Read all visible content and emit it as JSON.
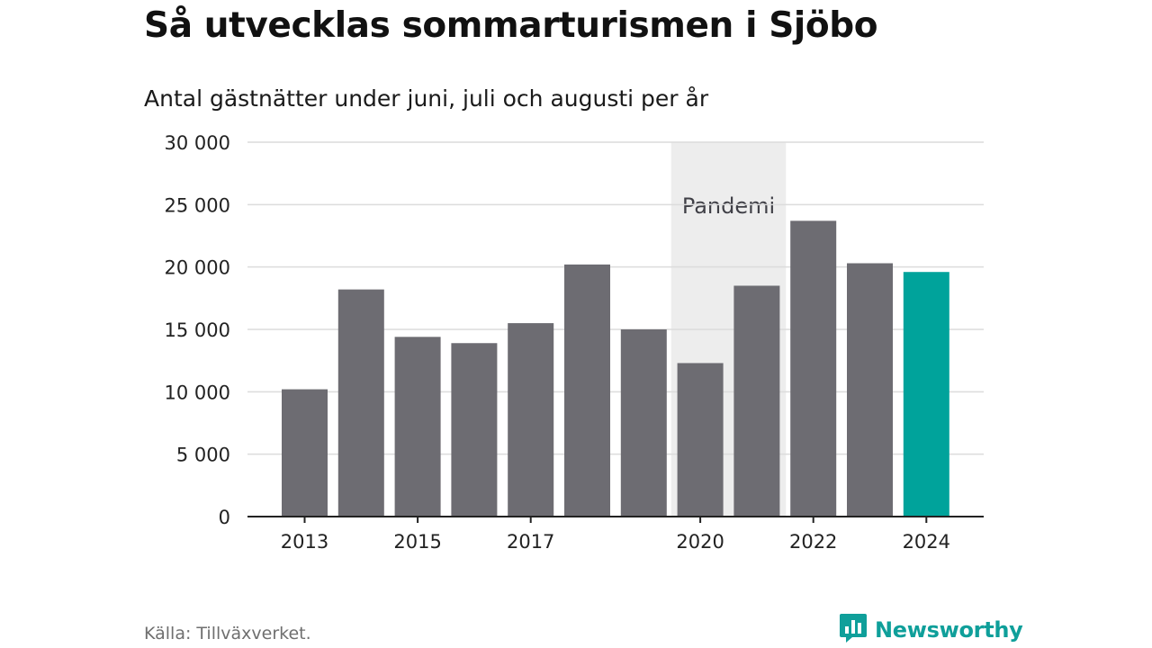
{
  "header": {
    "title": "Så utvecklas sommarturismen i Sjöbo",
    "subtitle": "Antal gästnätter under juni, juli och augusti per år"
  },
  "footer": {
    "source": "Källa: Tillväxverket.",
    "brand": "Newsworthy"
  },
  "colors": {
    "bar": "#6d6c72",
    "highlight": "#00a39b",
    "band": "#ededed",
    "grid": "#dcdcdc",
    "axis": "#222222",
    "brand": "#0f9f9a"
  },
  "icons": {
    "brand_logo": "newsworthy-logo-icon"
  },
  "chart_data": {
    "type": "bar",
    "title": "Så utvecklas sommarturismen i Sjöbo",
    "subtitle": "Antal gästnätter under juni, juli och augusti per år",
    "xlabel": "",
    "ylabel": "",
    "categories": [
      "2013",
      "2014",
      "2015",
      "2016",
      "2017",
      "2018",
      "2019",
      "2020",
      "2021",
      "2022",
      "2023",
      "2024"
    ],
    "values": [
      10200,
      18200,
      14400,
      13900,
      15500,
      20200,
      15000,
      12300,
      18500,
      23700,
      20300,
      19600
    ],
    "highlight": [
      "2024"
    ],
    "ylim": [
      0,
      30000
    ],
    "yticks": [
      0,
      5000,
      10000,
      15000,
      20000,
      25000,
      30000
    ],
    "ytick_labels": [
      "0",
      "5 000",
      "10 000",
      "15 000",
      "20 000",
      "25 000",
      "30 000"
    ],
    "xtick_labels": [
      "2013",
      "2015",
      "2017",
      "2020",
      "2022",
      "2024"
    ],
    "grid": true,
    "legend": "none",
    "annotations": [
      {
        "type": "band",
        "label": "Pandemi",
        "from": "2020",
        "to": "2021"
      }
    ]
  }
}
